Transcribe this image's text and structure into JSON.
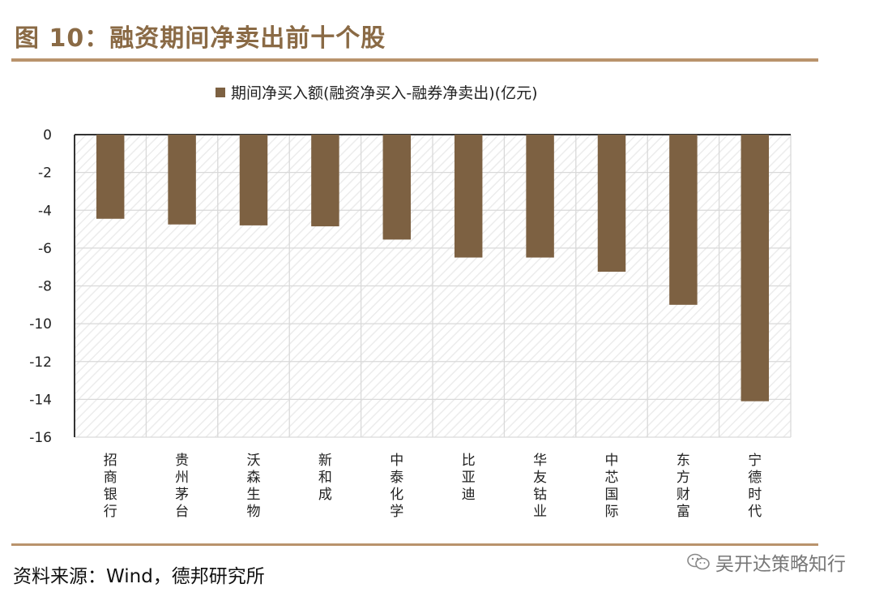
{
  "header": {
    "title": "图 10：融资期间净卖出前十个股"
  },
  "footer": {
    "source": "资料来源：Wind，德邦研究所",
    "watermark": "吴开达策略知行"
  },
  "colors": {
    "bar": "#7d6142",
    "accent": "#b9936c",
    "title": "#8a6a45",
    "grid": "#d9d9d9"
  },
  "chart_data": {
    "type": "bar",
    "title": "",
    "legend": [
      "期间净买入额(融资净买入-融券净卖出)(亿元)"
    ],
    "legend_position": "top-center",
    "categories": [
      "招商银行",
      "贵州茅台",
      "沃森生物",
      "新和成",
      "中泰化学",
      "比亚迪",
      "华友钴业",
      "中芯国际",
      "东方财富",
      "宁德时代"
    ],
    "series": [
      {
        "name": "期间净买入额(融资净买入-融券净卖出)(亿元)",
        "values": [
          -4.45,
          -4.75,
          -4.8,
          -4.85,
          -5.55,
          -6.5,
          -6.5,
          -7.25,
          -9.0,
          -14.1
        ]
      }
    ],
    "yticks": [
      "0",
      "-2",
      "-4",
      "-6",
      "-8",
      "-10",
      "-12",
      "-14",
      "-16"
    ],
    "ylim": [
      -16,
      0
    ],
    "grid": true,
    "xlabel": "",
    "ylabel": ""
  }
}
